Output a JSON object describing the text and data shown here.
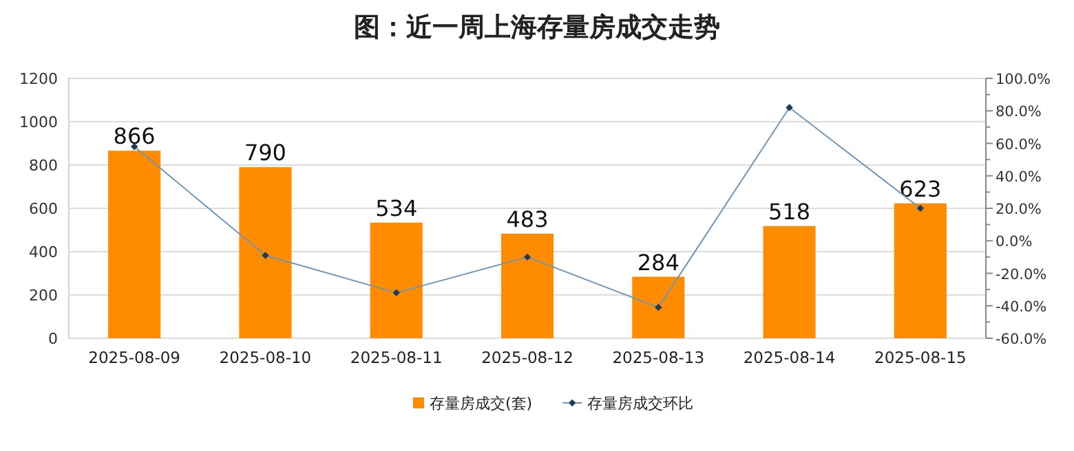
{
  "chart_data": {
    "type": "bar",
    "title": "图：近一周上海存量房成交走势",
    "categories": [
      "2025-08-09",
      "2025-08-10",
      "2025-08-11",
      "2025-08-12",
      "2025-08-13",
      "2025-08-14",
      "2025-08-15"
    ],
    "series": [
      {
        "name": "存量房成交(套)",
        "color": "#ff8c00",
        "values": [
          866,
          790,
          534,
          483,
          284,
          518,
          623
        ],
        "value_labels": [
          "866",
          "790",
          "534",
          "483",
          "284",
          "518",
          "623"
        ]
      },
      {
        "name": "存量房成交环比",
        "type": "line",
        "axis": "y2",
        "color": "#6f95b8",
        "values": [
          58,
          -9,
          -32,
          -10,
          -41,
          82,
          20
        ]
      }
    ],
    "ylim": [
      0,
      1200
    ],
    "yticks": [
      0,
      200,
      400,
      600,
      800,
      1000,
      1200
    ],
    "y2lim": [
      -60,
      100
    ],
    "y2ticks": [
      {
        "value": -60,
        "label": "-60.0%"
      },
      {
        "value": -40,
        "label": "-40.0%"
      },
      {
        "value": -20,
        "label": "-20.0%"
      },
      {
        "value": 0,
        "label": "0.0%"
      },
      {
        "value": 20,
        "label": "20.0%"
      },
      {
        "value": 40,
        "label": "40.0%"
      },
      {
        "value": 60,
        "label": "60.0%"
      },
      {
        "value": 80,
        "label": "80.0%"
      },
      {
        "value": 100,
        "label": "100.0%"
      }
    ],
    "grid": "y",
    "legend": "bottom",
    "marker": "diamond",
    "line_style": "solid"
  }
}
